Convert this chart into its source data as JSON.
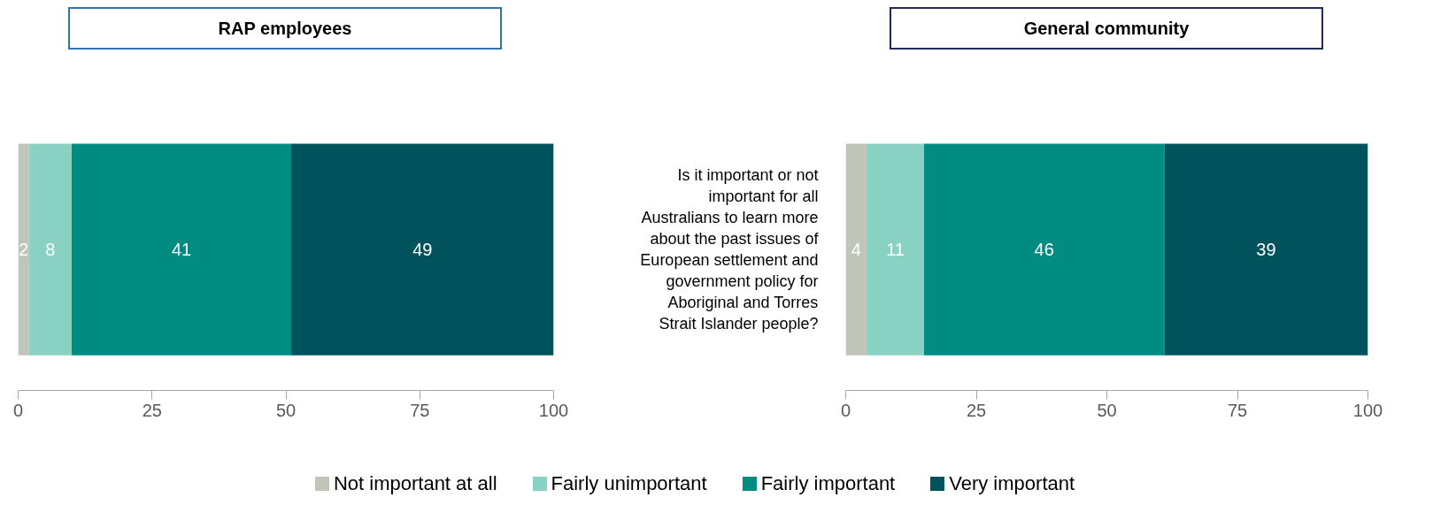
{
  "chart_data": [
    {
      "type": "bar",
      "orientation": "horizontal",
      "stacked": true,
      "title": "RAP employees",
      "categories": [
        null
      ],
      "xlim": [
        0,
        100
      ],
      "xticks": [
        0,
        25,
        50,
        75,
        100
      ],
      "data_labels": true,
      "legend": "bottom",
      "series": [
        {
          "name": "Not important at all",
          "color": "#bfc6b9",
          "values": [
            2
          ]
        },
        {
          "name": "Fairly unimportant",
          "color": "#88d1c3",
          "values": [
            8
          ]
        },
        {
          "name": "Fairly important",
          "color": "#008c80",
          "values": [
            41
          ]
        },
        {
          "name": "Very important",
          "color": "#00525c",
          "values": [
            49
          ]
        }
      ]
    },
    {
      "type": "bar",
      "orientation": "horizontal",
      "stacked": true,
      "title": "General community",
      "categories": [
        "Is it important or not important for all Australians to learn more about the past issues of European settlement and government policy for Aboriginal and Torres Strait Islander people?"
      ],
      "xlim": [
        0,
        100
      ],
      "xticks": [
        0,
        25,
        50,
        75,
        100
      ],
      "data_labels": true,
      "series": [
        {
          "color": "#bfc6b9",
          "values": [
            4
          ]
        },
        {
          "color": "#88d1c3",
          "values": [
            11
          ]
        },
        {
          "color": "#008c80",
          "values": [
            46
          ]
        },
        {
          "color": "#00525c",
          "values": [
            39
          ]
        }
      ]
    }
  ]
}
